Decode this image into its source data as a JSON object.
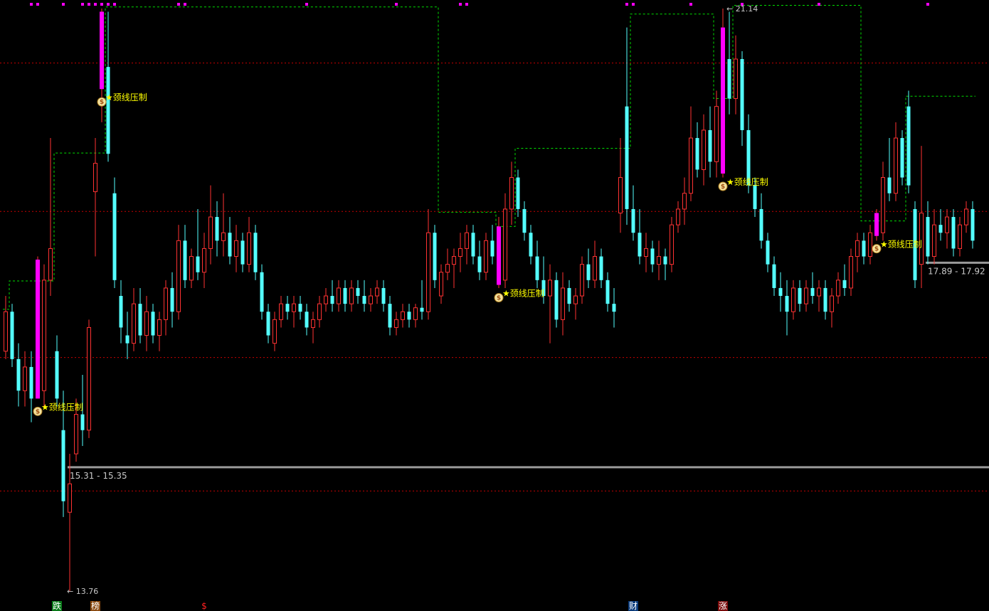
{
  "chart_data": {
    "type": "candlestick",
    "ylim": [
      13.76,
      21.14
    ],
    "grid": false,
    "colors": {
      "up": "#ff3232",
      "down": "#54ffff",
      "signal": "#ff00ff",
      "resistance": "#00dd00",
      "level": "#c80000",
      "support": "#9a9a9a",
      "label": "#ffff00"
    },
    "candles": [
      [
        16.8,
        17.5,
        16.7,
        17.3
      ],
      [
        17.3,
        17.4,
        16.6,
        16.7
      ],
      [
        16.7,
        16.9,
        16.1,
        16.3
      ],
      [
        16.3,
        16.8,
        16.1,
        16.6
      ],
      [
        16.6,
        16.8,
        15.9,
        16.2
      ],
      [
        17.96,
        18.0,
        16.2,
        16.2
      ],
      [
        16.3,
        17.9,
        16.1,
        17.7
      ],
      [
        17.7,
        19.5,
        17.5,
        18.1
      ],
      [
        16.8,
        17.0,
        16.1,
        16.2
      ],
      [
        15.8,
        16.3,
        14.7,
        14.9
      ],
      [
        14.76,
        15.5,
        13.76,
        15.12
      ],
      [
        15.5,
        16.2,
        15.4,
        16.0
      ],
      [
        16.0,
        16.5,
        15.6,
        15.8
      ],
      [
        15.8,
        17.2,
        15.7,
        17.1
      ],
      [
        18.82,
        19.5,
        18.0,
        19.18
      ],
      [
        21.1,
        21.14,
        19.7,
        20.12
      ],
      [
        20.4,
        21.1,
        19.2,
        19.3
      ],
      [
        18.8,
        19.0,
        17.6,
        17.7
      ],
      [
        17.5,
        17.7,
        16.9,
        17.1
      ],
      [
        17.0,
        17.3,
        16.7,
        16.9
      ],
      [
        16.9,
        17.6,
        16.8,
        17.4
      ],
      [
        17.4,
        17.6,
        16.9,
        17.0
      ],
      [
        17.0,
        17.5,
        16.8,
        17.3
      ],
      [
        17.3,
        17.4,
        16.9,
        17.0
      ],
      [
        17.0,
        17.3,
        16.8,
        17.2
      ],
      [
        17.2,
        17.7,
        17.0,
        17.6
      ],
      [
        17.6,
        17.8,
        17.1,
        17.3
      ],
      [
        17.3,
        18.4,
        17.2,
        18.2
      ],
      [
        18.2,
        18.4,
        17.6,
        17.7
      ],
      [
        17.7,
        18.1,
        17.6,
        18.0
      ],
      [
        18.0,
        18.6,
        17.7,
        17.8
      ],
      [
        17.8,
        18.3,
        17.6,
        18.1
      ],
      [
        18.1,
        18.9,
        17.9,
        18.5
      ],
      [
        18.5,
        18.7,
        18.0,
        18.2
      ],
      [
        18.2,
        18.8,
        18.0,
        18.3
      ],
      [
        18.3,
        18.5,
        17.9,
        18.0
      ],
      [
        18.0,
        18.4,
        17.8,
        18.2
      ],
      [
        18.2,
        18.3,
        17.8,
        17.9
      ],
      [
        17.9,
        18.5,
        17.8,
        18.3
      ],
      [
        18.3,
        18.4,
        17.7,
        17.8
      ],
      [
        17.8,
        17.9,
        17.2,
        17.3
      ],
      [
        17.3,
        17.4,
        16.9,
        17.0
      ],
      [
        16.9,
        17.3,
        16.8,
        17.2
      ],
      [
        17.2,
        17.5,
        17.1,
        17.4
      ],
      [
        17.4,
        17.5,
        17.2,
        17.3
      ],
      [
        17.3,
        17.5,
        17.1,
        17.4
      ],
      [
        17.4,
        17.5,
        17.2,
        17.3
      ],
      [
        17.3,
        17.4,
        17.0,
        17.1
      ],
      [
        17.1,
        17.3,
        16.9,
        17.2
      ],
      [
        17.2,
        17.5,
        17.1,
        17.4
      ],
      [
        17.4,
        17.6,
        17.3,
        17.5
      ],
      [
        17.5,
        17.7,
        17.3,
        17.4
      ],
      [
        17.4,
        17.7,
        17.3,
        17.6
      ],
      [
        17.6,
        17.7,
        17.3,
        17.4
      ],
      [
        17.4,
        17.7,
        17.3,
        17.6
      ],
      [
        17.6,
        17.7,
        17.4,
        17.5
      ],
      [
        17.5,
        17.7,
        17.3,
        17.4
      ],
      [
        17.4,
        17.6,
        17.3,
        17.5
      ],
      [
        17.5,
        17.7,
        17.4,
        17.6
      ],
      [
        17.6,
        17.7,
        17.3,
        17.4
      ],
      [
        17.4,
        17.5,
        17.0,
        17.1
      ],
      [
        17.1,
        17.3,
        17.0,
        17.2
      ],
      [
        17.2,
        17.4,
        17.1,
        17.3
      ],
      [
        17.3,
        17.4,
        17.1,
        17.2
      ],
      [
        17.2,
        17.4,
        17.1,
        17.35
      ],
      [
        17.35,
        17.7,
        17.2,
        17.3
      ],
      [
        17.3,
        18.6,
        17.2,
        18.3
      ],
      [
        18.3,
        18.4,
        17.6,
        17.7
      ],
      [
        17.5,
        17.9,
        17.4,
        17.8
      ],
      [
        17.8,
        18.1,
        17.7,
        17.9
      ],
      [
        17.9,
        18.1,
        17.6,
        18.0
      ],
      [
        18.0,
        18.3,
        17.8,
        18.1
      ],
      [
        18.1,
        18.4,
        17.9,
        18.3
      ],
      [
        18.3,
        18.4,
        17.9,
        18.0
      ],
      [
        18.0,
        18.2,
        17.7,
        17.8
      ],
      [
        17.8,
        18.3,
        17.7,
        18.2
      ],
      [
        18.2,
        18.4,
        17.9,
        18.0
      ],
      [
        18.38,
        18.5,
        17.6,
        17.64
      ],
      [
        17.7,
        18.8,
        17.6,
        18.6
      ],
      [
        18.6,
        19.2,
        18.4,
        19.0
      ],
      [
        19.0,
        19.1,
        18.5,
        18.6
      ],
      [
        18.6,
        18.7,
        18.2,
        18.3
      ],
      [
        18.3,
        18.4,
        17.9,
        18.0
      ],
      [
        18.0,
        18.2,
        17.6,
        17.7
      ],
      [
        17.7,
        18.0,
        17.4,
        17.5
      ],
      [
        17.5,
        17.9,
        16.9,
        17.7
      ],
      [
        17.7,
        17.8,
        17.1,
        17.2
      ],
      [
        17.2,
        17.8,
        17.0,
        17.6
      ],
      [
        17.6,
        17.7,
        17.3,
        17.4
      ],
      [
        17.4,
        17.6,
        17.2,
        17.5
      ],
      [
        17.5,
        18.0,
        17.4,
        17.9
      ],
      [
        17.9,
        18.1,
        17.6,
        17.7
      ],
      [
        17.7,
        18.2,
        17.6,
        18.0
      ],
      [
        18.0,
        18.1,
        17.6,
        17.7
      ],
      [
        17.7,
        17.8,
        17.3,
        17.4
      ],
      [
        17.4,
        17.6,
        17.1,
        17.3
      ],
      [
        18.55,
        19.5,
        18.3,
        19.0
      ],
      [
        19.9,
        20.9,
        18.4,
        18.6
      ],
      [
        18.6,
        18.9,
        18.2,
        18.3
      ],
      [
        18.3,
        18.6,
        17.9,
        18.0
      ],
      [
        18.0,
        18.3,
        17.8,
        18.1
      ],
      [
        18.1,
        18.2,
        17.8,
        17.9
      ],
      [
        17.9,
        18.2,
        17.7,
        18.0
      ],
      [
        18.0,
        18.1,
        17.7,
        17.9
      ],
      [
        17.9,
        18.5,
        17.8,
        18.4
      ],
      [
        18.4,
        18.7,
        18.3,
        18.6
      ],
      [
        18.6,
        19.0,
        18.4,
        18.8
      ],
      [
        18.8,
        19.9,
        18.7,
        19.5
      ],
      [
        19.5,
        19.7,
        19.0,
        19.1
      ],
      [
        19.1,
        19.8,
        18.9,
        19.6
      ],
      [
        19.6,
        19.9,
        19.0,
        19.2
      ],
      [
        19.2,
        20.1,
        19.0,
        19.9
      ],
      [
        20.9,
        21.14,
        19.0,
        19.05
      ],
      [
        20.5,
        21.1,
        19.8,
        20.0
      ],
      [
        20.0,
        20.8,
        19.8,
        20.5
      ],
      [
        20.5,
        20.6,
        19.4,
        19.6
      ],
      [
        19.6,
        19.8,
        18.8,
        18.9
      ],
      [
        18.9,
        19.0,
        18.5,
        18.6
      ],
      [
        18.6,
        18.8,
        18.1,
        18.2
      ],
      [
        18.2,
        18.3,
        17.8,
        17.9
      ],
      [
        17.9,
        18.0,
        17.5,
        17.6
      ],
      [
        17.6,
        17.8,
        17.3,
        17.5
      ],
      [
        17.5,
        17.7,
        17.0,
        17.3
      ],
      [
        17.3,
        17.7,
        17.2,
        17.6
      ],
      [
        17.6,
        17.7,
        17.3,
        17.4
      ],
      [
        17.4,
        17.7,
        17.3,
        17.6
      ],
      [
        17.6,
        17.8,
        17.4,
        17.5
      ],
      [
        17.5,
        17.7,
        17.3,
        17.6
      ],
      [
        17.6,
        17.7,
        17.2,
        17.3
      ],
      [
        17.3,
        17.6,
        17.1,
        17.5
      ],
      [
        17.5,
        17.8,
        17.4,
        17.7
      ],
      [
        17.7,
        17.9,
        17.5,
        17.6
      ],
      [
        17.6,
        18.1,
        17.5,
        18.0
      ],
      [
        18.0,
        18.3,
        17.8,
        18.2
      ],
      [
        18.2,
        18.3,
        17.9,
        18.0
      ],
      [
        18.0,
        18.4,
        17.9,
        18.3
      ],
      [
        18.55,
        18.6,
        18.2,
        18.26
      ],
      [
        18.3,
        19.2,
        18.2,
        19.0
      ],
      [
        19.0,
        19.5,
        18.7,
        18.8
      ],
      [
        18.8,
        19.7,
        18.7,
        19.5
      ],
      [
        19.5,
        19.6,
        18.9,
        19.0
      ],
      [
        19.9,
        20.1,
        18.8,
        18.9
      ],
      [
        18.6,
        18.7,
        17.6,
        17.7
      ],
      [
        17.9,
        19.4,
        17.6,
        18.55
      ],
      [
        18.5,
        18.7,
        17.9,
        18.0
      ],
      [
        18.0,
        18.6,
        17.9,
        18.4
      ],
      [
        18.4,
        18.6,
        18.2,
        18.3
      ],
      [
        18.3,
        18.6,
        18.1,
        18.5
      ],
      [
        18.5,
        18.6,
        18.0,
        18.1
      ],
      [
        18.1,
        18.5,
        18.0,
        18.4
      ],
      [
        18.4,
        18.7,
        18.3,
        18.6
      ],
      [
        18.6,
        18.7,
        18.1,
        18.2
      ]
    ],
    "candle_fields": [
      "open",
      "high",
      "low",
      "close"
    ],
    "signal_candles": [
      5,
      15,
      77,
      112,
      136
    ],
    "signal_label": "★颈线压制",
    "top_signal_candles": [
      4,
      5,
      9,
      12,
      13,
      14,
      15,
      16,
      17,
      27,
      28,
      47,
      61,
      71,
      72,
      97,
      98,
      107,
      115,
      127,
      144
    ],
    "resistance_steps": [
      {
        "from": 0,
        "level": 17.33
      },
      {
        "from": 1,
        "level": 17.69
      },
      {
        "from": 8,
        "level": 19.31
      },
      {
        "from": 16,
        "level": 21.16
      },
      {
        "from": 68,
        "level": 18.56
      },
      {
        "from": 77,
        "level": 18.38
      },
      {
        "from": 80,
        "level": 19.37
      },
      {
        "from": 98,
        "level": 21.07
      },
      {
        "from": 111,
        "level": 20.0
      },
      {
        "from": 114,
        "level": 21.18
      },
      {
        "from": 134,
        "level": 18.45
      },
      {
        "from": 141,
        "level": 20.03
      }
    ],
    "level_lines": [
      20.45,
      18.57,
      16.72,
      15.03
    ],
    "support_zones": [
      {
        "from": 10,
        "level": 15.33,
        "label": "15.31 - 15.35"
      },
      {
        "from": 144,
        "level": 17.92,
        "label": "17.89 - 17.92"
      }
    ],
    "high_marker": {
      "candle": 113,
      "value": 21.14,
      "label": "21.14"
    },
    "low_marker": {
      "candle": 10,
      "value": 13.76,
      "label": "13.76"
    }
  },
  "bottom_markers": [
    {
      "candle": 8,
      "label": "跌",
      "bg": "#0a7a1a",
      "color": "#ffffff"
    },
    {
      "candle": 14,
      "label": "榜",
      "bg": "#8a4a10",
      "color": "#ffffff"
    },
    {
      "candle": 31,
      "label": "$",
      "bg": "#000000",
      "color": "#ff2020"
    },
    {
      "candle": 98,
      "label": "财",
      "bg": "#0a3a7a",
      "color": "#ffffff"
    },
    {
      "candle": 112,
      "label": "涨",
      "bg": "#7a0a0a",
      "color": "#ffffff"
    }
  ]
}
